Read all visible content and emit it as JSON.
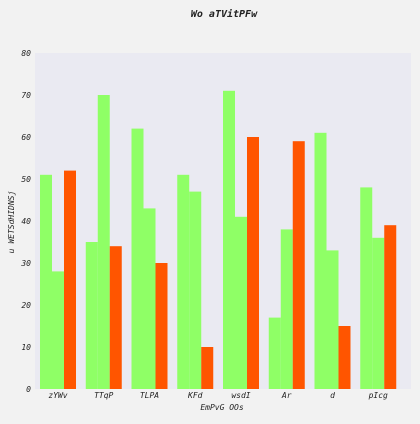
{
  "chart_data": {
    "type": "bar",
    "title": "Wo aTVitPFw",
    "xlabel": "EmPvG OOs",
    "ylabel": "u WETSdHIDNSj",
    "categories": [
      "zYWv",
      "TTqP",
      "TLPA",
      "KFd",
      "wsdI",
      "Ar",
      "d",
      "pIcg"
    ],
    "series": [
      {
        "values": [
          51,
          35,
          62,
          51,
          71,
          17,
          61,
          48
        ],
        "color": "#8fff66"
      },
      {
        "values": [
          28,
          70,
          43,
          47,
          41,
          38,
          33,
          36
        ],
        "color": "#8fff66"
      },
      {
        "values": [
          52,
          34,
          30,
          10,
          60,
          59,
          15,
          39
        ],
        "color": "#ff5500"
      }
    ],
    "ylim": [
      0,
      80
    ],
    "yticks": [
      0,
      10,
      20,
      30,
      40,
      50,
      60,
      70,
      80
    ],
    "grid": false,
    "plot_background": "#eaeaf2",
    "page_background": "#f2f2f2"
  }
}
